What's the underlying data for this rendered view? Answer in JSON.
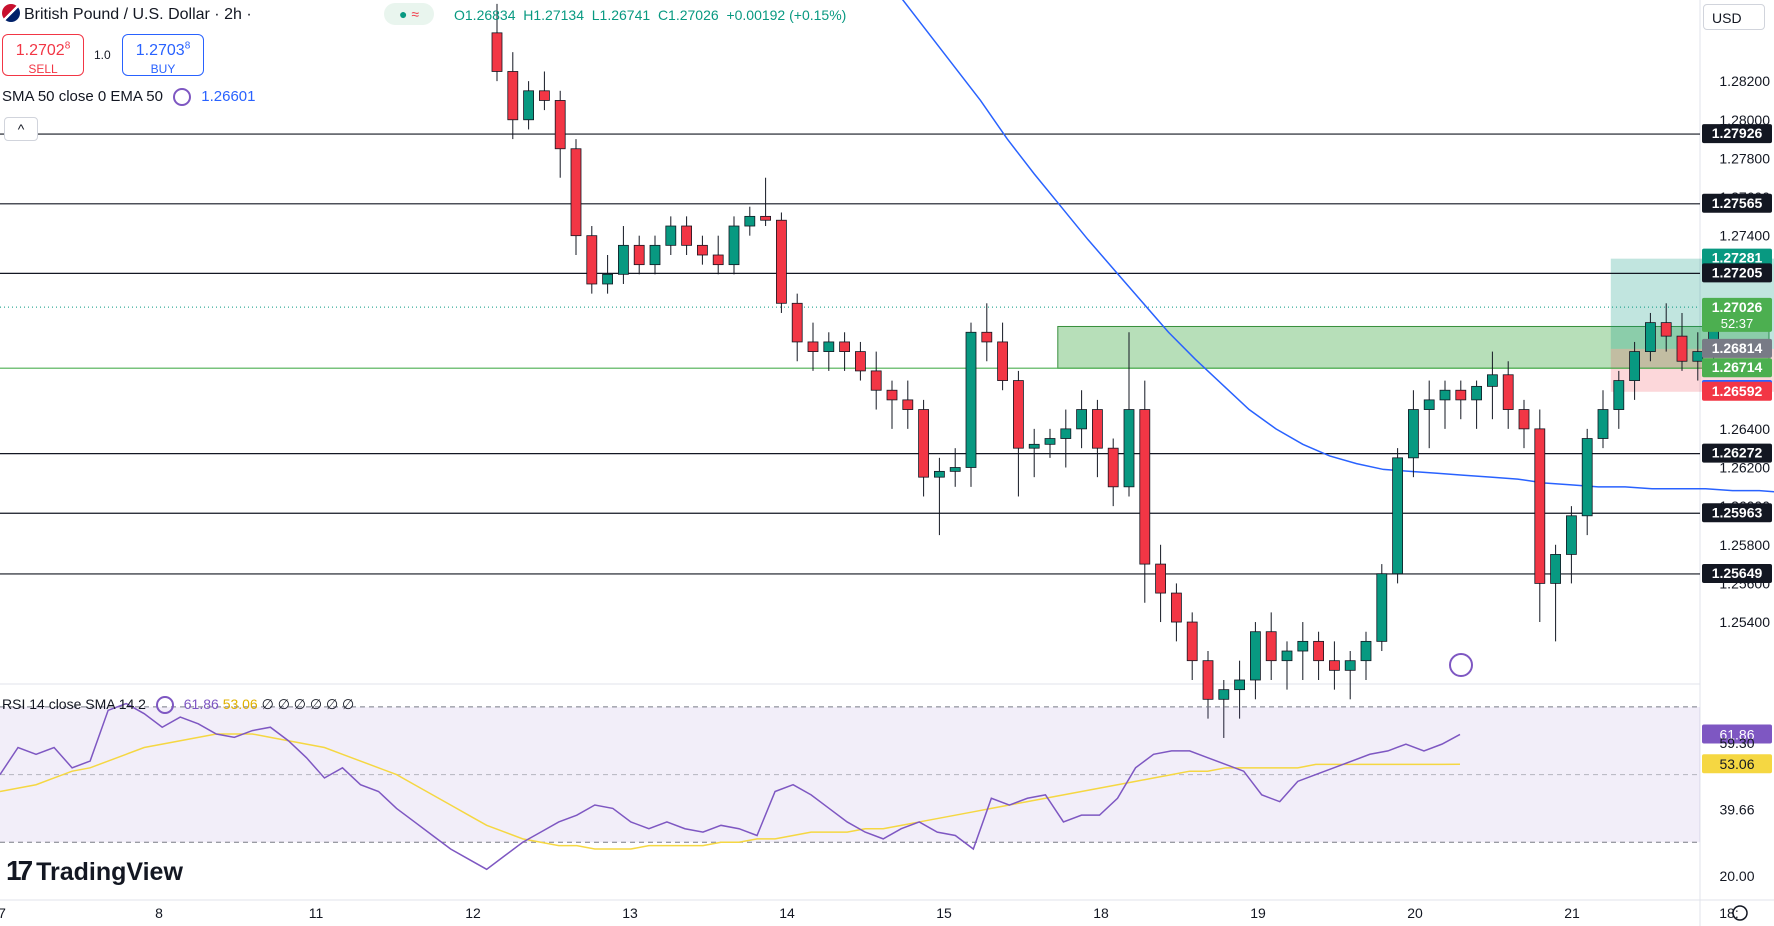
{
  "header": {
    "flag_icon": "uk-us-flag-icon",
    "symbol": "British Pound / U.S. Dollar · 2h ·",
    "indicator_pill": {
      "dot": "●",
      "wave": "≈"
    },
    "ohlc": "O1.26834  H1.27134  L1.26741  C1.27026  +0.00192 (+0.15%)",
    "sell": {
      "price_main": "1.2702",
      "price_sup": "8",
      "label": "SELL"
    },
    "quantity": "1.0",
    "buy": {
      "price_main": "1.2703",
      "price_sup": "8",
      "label": "BUY"
    },
    "sma_legend": "SMA 50 close 0 EMA 50",
    "sma_value": "1.26601",
    "collapse_icon": "chevron-up-icon",
    "collapse_glyph": "^"
  },
  "currency": "USD",
  "rsi_legend": {
    "label": "RSI 14 close SMA 14 2",
    "rsi": "61.86",
    "sma": "53.06",
    "extra": "∅ ∅ ∅ ∅ ∅ ∅"
  },
  "brand": "TradingView",
  "colors": {
    "up": "#089981",
    "down": "#f23645",
    "sma": "#2962ff",
    "rsi": "#7e57c2",
    "rsi_ma": "#f5d742"
  },
  "chart_data": {
    "type": "candlestick",
    "price_axis_ticks": [
      "1.28200",
      "1.28000",
      "1.27800",
      "1.27600",
      "1.27400",
      "1.27200",
      "1.27000",
      "1.26800",
      "1.26600",
      "1.26400",
      "1.26200",
      "1.26000",
      "1.25800",
      "1.25600",
      "1.25400"
    ],
    "time_axis": [
      "7",
      "8",
      "11",
      "12",
      "13",
      "14",
      "15",
      "18",
      "19",
      "20",
      "21",
      "18:"
    ],
    "horizontal_levels": [
      1.27926,
      1.27565,
      1.27205,
      1.26272,
      1.25963,
      1.25649
    ],
    "support_line": 1.26714,
    "price_labels": [
      {
        "text": "1.27926",
        "value": 1.27926,
        "style": "black"
      },
      {
        "text": "1.27565",
        "value": 1.27565,
        "style": "black"
      },
      {
        "text": "1.27281",
        "value": 1.27281,
        "style": "teal"
      },
      {
        "text": "1.27205",
        "value": 1.27205,
        "style": "black"
      },
      {
        "text": "1.27026",
        "value": 1.27026,
        "style": "green",
        "sub": "52:37"
      },
      {
        "text": "1.26814",
        "value": 1.26814,
        "style": "gray"
      },
      {
        "text": "1.26714",
        "value": 1.26714,
        "style": "green"
      },
      {
        "text": "1.26601",
        "value": 1.26601,
        "style": "blue"
      },
      {
        "text": "1.26592",
        "value": 1.26592,
        "style": "red"
      },
      {
        "text": "1.26272",
        "value": 1.26272,
        "style": "black"
      },
      {
        "text": "1.25963",
        "value": 1.25963,
        "style": "black"
      },
      {
        "text": "1.25649",
        "value": 1.25649,
        "style": "black"
      }
    ],
    "candles": [
      [
        1.2845,
        1.286,
        1.282,
        1.2825
      ],
      [
        1.2825,
        1.2835,
        1.279,
        1.28
      ],
      [
        1.28,
        1.282,
        1.2795,
        1.2815
      ],
      [
        1.2815,
        1.2825,
        1.2805,
        1.281
      ],
      [
        1.281,
        1.2815,
        1.277,
        1.2785
      ],
      [
        1.2785,
        1.279,
        1.273,
        1.274
      ],
      [
        1.274,
        1.2745,
        1.271,
        1.2715
      ],
      [
        1.2715,
        1.273,
        1.271,
        1.272
      ],
      [
        1.272,
        1.2745,
        1.2715,
        1.2735
      ],
      [
        1.2735,
        1.274,
        1.272,
        1.2725
      ],
      [
        1.2725,
        1.274,
        1.272,
        1.2735
      ],
      [
        1.2735,
        1.275,
        1.273,
        1.2745
      ],
      [
        1.2745,
        1.275,
        1.273,
        1.2735
      ],
      [
        1.2735,
        1.274,
        1.2725,
        1.273
      ],
      [
        1.273,
        1.274,
        1.272,
        1.2725
      ],
      [
        1.2725,
        1.275,
        1.272,
        1.2745
      ],
      [
        1.2745,
        1.2755,
        1.274,
        1.275
      ],
      [
        1.275,
        1.277,
        1.2745,
        1.2748
      ],
      [
        1.2748,
        1.2752,
        1.27,
        1.2705
      ],
      [
        1.2705,
        1.271,
        1.2675,
        1.2685
      ],
      [
        1.2685,
        1.2695,
        1.267,
        1.268
      ],
      [
        1.268,
        1.269,
        1.267,
        1.2685
      ],
      [
        1.2685,
        1.269,
        1.267,
        1.268
      ],
      [
        1.268,
        1.2685,
        1.2665,
        1.267
      ],
      [
        1.267,
        1.268,
        1.265,
        1.266
      ],
      [
        1.266,
        1.2665,
        1.264,
        1.2655
      ],
      [
        1.2655,
        1.2665,
        1.264,
        1.265
      ],
      [
        1.265,
        1.2655,
        1.2605,
        1.2615
      ],
      [
        1.2615,
        1.2625,
        1.2585,
        1.2618
      ],
      [
        1.2618,
        1.263,
        1.261,
        1.262
      ],
      [
        1.262,
        1.2695,
        1.261,
        1.269
      ],
      [
        1.269,
        1.2705,
        1.2675,
        1.2685
      ],
      [
        1.2685,
        1.2695,
        1.266,
        1.2665
      ],
      [
        1.2665,
        1.267,
        1.2605,
        1.263
      ],
      [
        1.263,
        1.264,
        1.2615,
        1.2632
      ],
      [
        1.2632,
        1.264,
        1.2625,
        1.2635
      ],
      [
        1.2635,
        1.265,
        1.262,
        1.264
      ],
      [
        1.264,
        1.266,
        1.263,
        1.265
      ],
      [
        1.265,
        1.2655,
        1.2615,
        1.263
      ],
      [
        1.263,
        1.2635,
        1.26,
        1.261
      ],
      [
        1.261,
        1.269,
        1.2605,
        1.265
      ],
      [
        1.265,
        1.2665,
        1.255,
        1.257
      ],
      [
        1.257,
        1.258,
        1.254,
        1.2555
      ],
      [
        1.2555,
        1.256,
        1.253,
        1.254
      ],
      [
        1.254,
        1.2545,
        1.251,
        1.252
      ],
      [
        1.252,
        1.2525,
        1.249,
        1.25
      ],
      [
        1.25,
        1.251,
        1.248,
        1.2505
      ],
      [
        1.2505,
        1.252,
        1.249,
        1.251
      ],
      [
        1.251,
        1.254,
        1.25,
        1.2535
      ],
      [
        1.2535,
        1.2545,
        1.251,
        1.252
      ],
      [
        1.252,
        1.253,
        1.2505,
        1.2525
      ],
      [
        1.2525,
        1.254,
        1.251,
        1.253
      ],
      [
        1.253,
        1.2535,
        1.251,
        1.252
      ],
      [
        1.252,
        1.253,
        1.2505,
        1.2515
      ],
      [
        1.2515,
        1.2525,
        1.25,
        1.252
      ],
      [
        1.252,
        1.2535,
        1.251,
        1.253
      ],
      [
        1.253,
        1.257,
        1.2525,
        1.2565
      ],
      [
        1.2565,
        1.263,
        1.256,
        1.2625
      ],
      [
        1.2625,
        1.266,
        1.2615,
        1.265
      ],
      [
        1.265,
        1.2665,
        1.263,
        1.2655
      ],
      [
        1.2655,
        1.2665,
        1.264,
        1.266
      ],
      [
        1.266,
        1.2665,
        1.2645,
        1.2655
      ],
      [
        1.2655,
        1.2665,
        1.264,
        1.2662
      ],
      [
        1.2662,
        1.268,
        1.2645,
        1.2668
      ],
      [
        1.2668,
        1.2675,
        1.264,
        1.265
      ],
      [
        1.265,
        1.2655,
        1.263,
        1.264
      ],
      [
        1.264,
        1.265,
        1.254,
        1.256
      ],
      [
        1.256,
        1.258,
        1.253,
        1.2575
      ],
      [
        1.2575,
        1.26,
        1.256,
        1.2595
      ],
      [
        1.2595,
        1.264,
        1.2585,
        1.2635
      ],
      [
        1.2635,
        1.266,
        1.263,
        1.265
      ],
      [
        1.265,
        1.267,
        1.264,
        1.2665
      ],
      [
        1.2665,
        1.2685,
        1.2655,
        1.268
      ],
      [
        1.268,
        1.27,
        1.2675,
        1.2695
      ],
      [
        1.2695,
        1.2705,
        1.268,
        1.2688
      ],
      [
        1.2688,
        1.27,
        1.267,
        1.2675
      ],
      [
        1.2675,
        1.269,
        1.2665,
        1.268
      ],
      [
        1.268,
        1.2705,
        1.2676,
        1.2703
      ]
    ],
    "sma50": [
      1.295,
      1.2935,
      1.2918,
      1.29,
      1.2882,
      1.2864,
      1.2846,
      1.2828,
      1.281,
      1.279,
      1.2772,
      1.2755,
      1.2738,
      1.2722,
      1.2706,
      1.269,
      1.2676,
      1.2663,
      1.265,
      1.264,
      1.2632,
      1.2626,
      1.2622,
      1.2619,
      1.2618,
      1.2617,
      1.2616,
      1.2615,
      1.2614,
      1.2612,
      1.2611,
      1.261,
      1.261,
      1.2609,
      1.2609,
      1.2609,
      1.2608,
      1.2608,
      1.2607,
      1.2607
    ],
    "sma50_start_index": 17,
    "trade_zone": {
      "entry": 1.26814,
      "target": 1.27281,
      "stop": 1.26592,
      "start_index": 71,
      "end_index": 84
    },
    "green_zone": {
      "top": 1.2693,
      "bottom": 1.26714,
      "start_index": 36,
      "end_index": 80
    },
    "rsi": {
      "ticks": [
        "61.86",
        "59.30",
        "53.06",
        "39.66",
        "20.00"
      ],
      "range": [
        15,
        75
      ],
      "upper": 70,
      "lower": 30,
      "rsi_values": [
        50,
        58,
        56,
        58,
        52,
        54,
        69,
        71,
        68,
        64,
        67,
        65,
        62,
        61,
        63,
        64,
        60,
        55,
        49,
        52,
        47,
        45,
        40,
        36,
        32,
        28,
        25,
        22,
        26,
        30,
        33,
        36,
        38,
        41,
        40,
        36,
        34,
        36,
        34,
        33,
        35,
        34,
        32,
        45,
        47,
        44,
        40,
        36,
        33,
        31,
        34,
        36,
        33,
        32,
        28,
        43,
        41,
        43,
        44,
        36,
        38,
        38,
        43,
        52,
        56,
        57,
        57,
        55,
        53,
        51,
        44,
        42,
        48,
        50,
        52,
        54,
        56,
        57,
        59,
        57,
        59,
        61.86
      ],
      "rsi_ma": [
        45,
        46,
        47,
        49,
        51,
        52,
        54,
        56,
        58,
        59,
        60,
        61,
        62,
        62,
        62,
        61,
        60,
        59,
        58,
        56,
        54,
        52,
        50,
        47,
        44,
        41,
        38,
        35,
        33,
        31,
        30,
        29,
        29,
        28,
        28,
        28,
        29,
        29,
        29,
        29,
        30,
        30,
        31,
        31,
        32,
        33,
        33,
        33,
        34,
        34,
        35,
        36,
        37,
        38,
        39,
        40,
        41,
        42,
        43,
        44,
        45,
        46,
        47,
        48,
        49,
        50,
        51,
        51,
        52,
        52,
        52,
        52,
        52,
        53,
        53,
        53,
        53,
        53,
        53,
        53,
        53,
        53.06
      ]
    }
  }
}
